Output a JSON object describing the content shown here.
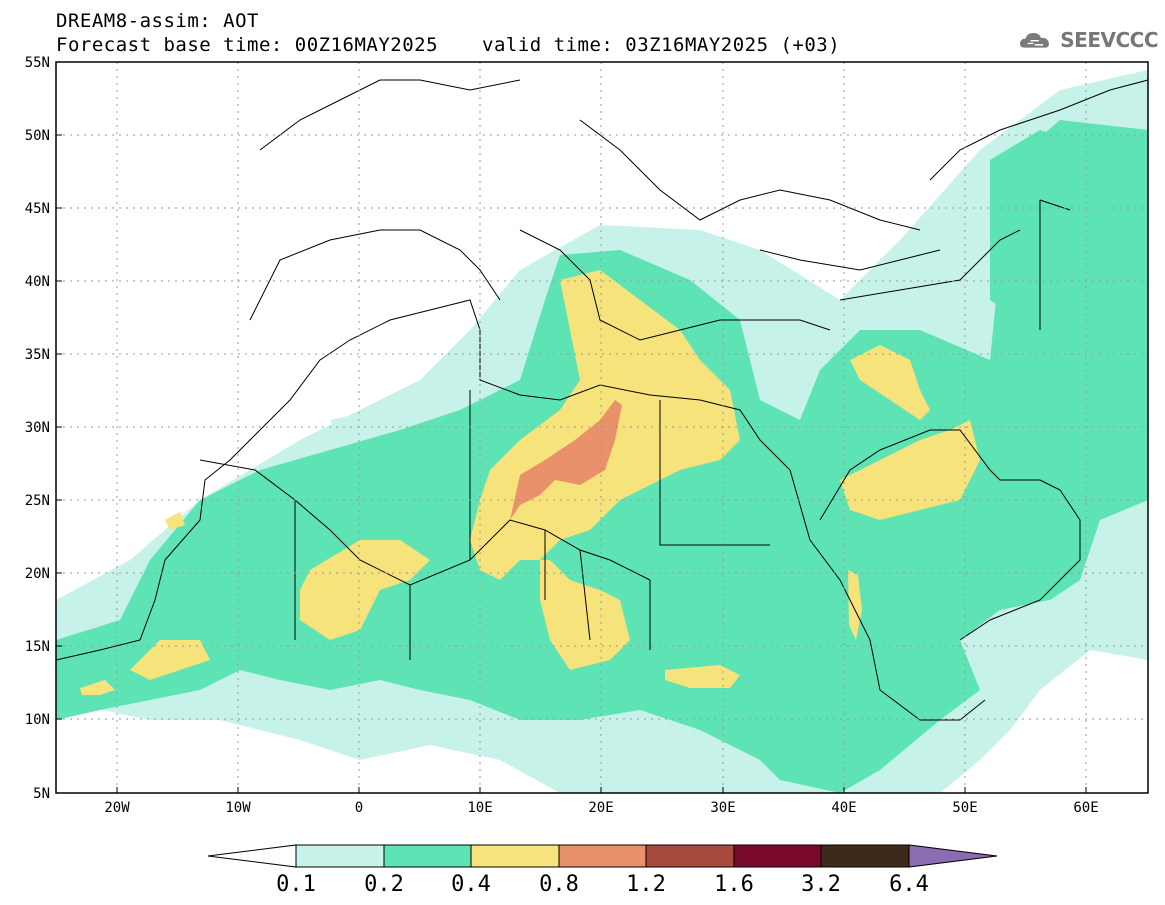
{
  "header": {
    "line1": "DREAM8-assim: AOT",
    "line2": "Forecast base time: 00Z16MAY2025",
    "valid": "valid time: 03Z16MAY2025 (+03)"
  },
  "logo": {
    "text": "SEEVCCC",
    "icon": "cloud-icon"
  },
  "map": {
    "lat_labels": [
      "55N",
      "50N",
      "45N",
      "40N",
      "35N",
      "30N",
      "25N",
      "20N",
      "15N",
      "10N",
      "5N"
    ],
    "lon_labels": [
      "20W",
      "10W",
      "0",
      "10E",
      "20E",
      "30E",
      "40E",
      "50E",
      "60E"
    ],
    "extent": {
      "lon": [
        -25,
        65
      ],
      "lat": [
        5,
        55
      ]
    }
  },
  "legend": {
    "labels": [
      "0.1",
      "0.2",
      "0.4",
      "0.8",
      "1.2",
      "1.6",
      "3.2",
      "6.4"
    ],
    "colors": [
      "#ffffff",
      "#c7f2e9",
      "#5ee3b4",
      "#f6e37b",
      "#e9916a",
      "#a94a3f",
      "#7a0a2b",
      "#3d2a1a",
      "#8a6db0"
    ]
  }
}
